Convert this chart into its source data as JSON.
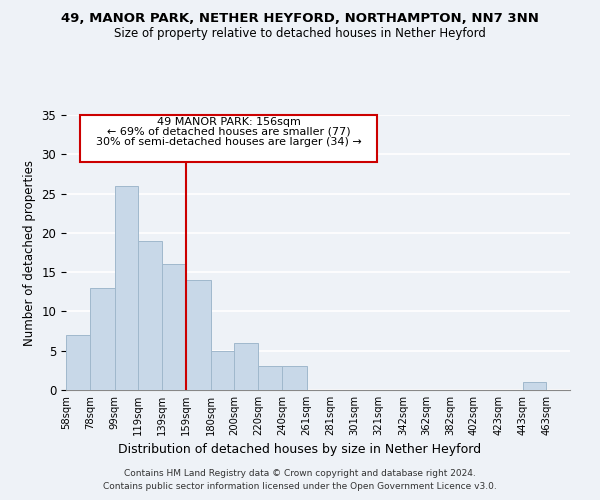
{
  "title1": "49, MANOR PARK, NETHER HEYFORD, NORTHAMPTON, NN7 3NN",
  "title2": "Size of property relative to detached houses in Nether Heyford",
  "xlabel": "Distribution of detached houses by size in Nether Heyford",
  "ylabel": "Number of detached properties",
  "footer1": "Contains HM Land Registry data © Crown copyright and database right 2024.",
  "footer2": "Contains public sector information licensed under the Open Government Licence v3.0.",
  "bin_labels": [
    "58sqm",
    "78sqm",
    "99sqm",
    "119sqm",
    "139sqm",
    "159sqm",
    "180sqm",
    "200sqm",
    "220sqm",
    "240sqm",
    "261sqm",
    "281sqm",
    "301sqm",
    "321sqm",
    "342sqm",
    "362sqm",
    "382sqm",
    "402sqm",
    "423sqm",
    "443sqm",
    "463sqm"
  ],
  "bin_edges": [
    58,
    78,
    99,
    119,
    139,
    159,
    180,
    200,
    220,
    240,
    261,
    281,
    301,
    321,
    342,
    362,
    382,
    402,
    423,
    443,
    463
  ],
  "counts": [
    7,
    13,
    26,
    19,
    16,
    14,
    5,
    6,
    3,
    3,
    0,
    0,
    0,
    0,
    0,
    0,
    0,
    0,
    0,
    1,
    0
  ],
  "bar_color": "#c8d8e8",
  "bar_edge_color": "#a0b8cc",
  "vline_x": 159,
  "vline_color": "#cc0000",
  "annotation_line0": "49 MANOR PARK: 156sqm",
  "annotation_line1": "← 69% of detached houses are smaller (77)",
  "annotation_line2": "30% of semi-detached houses are larger (34) →",
  "annotation_box_color": "#ffffff",
  "annotation_box_edge": "#cc0000",
  "ylim": [
    0,
    35
  ],
  "yticks": [
    0,
    5,
    10,
    15,
    20,
    25,
    30,
    35
  ],
  "background_color": "#eef2f7"
}
